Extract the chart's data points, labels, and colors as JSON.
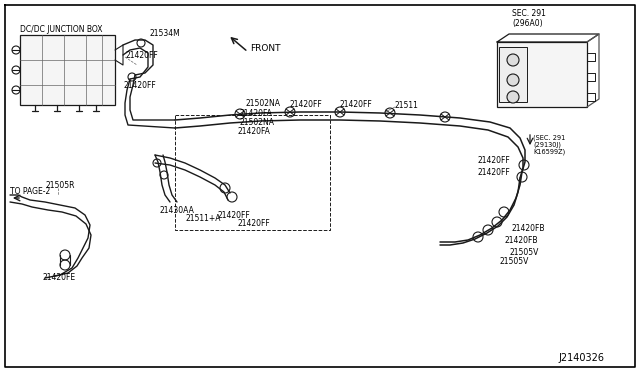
{
  "background_color": "#ffffff",
  "diagram_id": "J2140326",
  "border_color": "#000000",
  "line_color": "#1a1a1a",
  "text_color": "#000000",
  "font_size": 5.5,
  "labels": {
    "dc_junction_box": "DC/DC JUNCTION BOX",
    "front": "FRONT",
    "to_page2": "TO PAGE-2",
    "sec291_top": "SEC. 291\n(296A0)",
    "sec291_bot1": "(SEC. 291",
    "sec291_bot2": "(29130J)",
    "sec291_bot3": "K16599Z)",
    "p21534M": "21534M",
    "p21502NA_1": "21502NA",
    "p21502NA_2": "21502NA",
    "p21420FA_1": "21420FA",
    "p21420FA_2": "21420FA",
    "p21420FF": "21420FF",
    "p21430AA": "21430AA",
    "p21511A": "21511+A",
    "p21511": "21511",
    "p21505R": "21505R",
    "p21505V_1": "21505V",
    "p21505V_2": "21505V",
    "p21420FE": "21420FE",
    "p21420FB_1": "21420FB",
    "p21420FB_2": "21420FB"
  }
}
